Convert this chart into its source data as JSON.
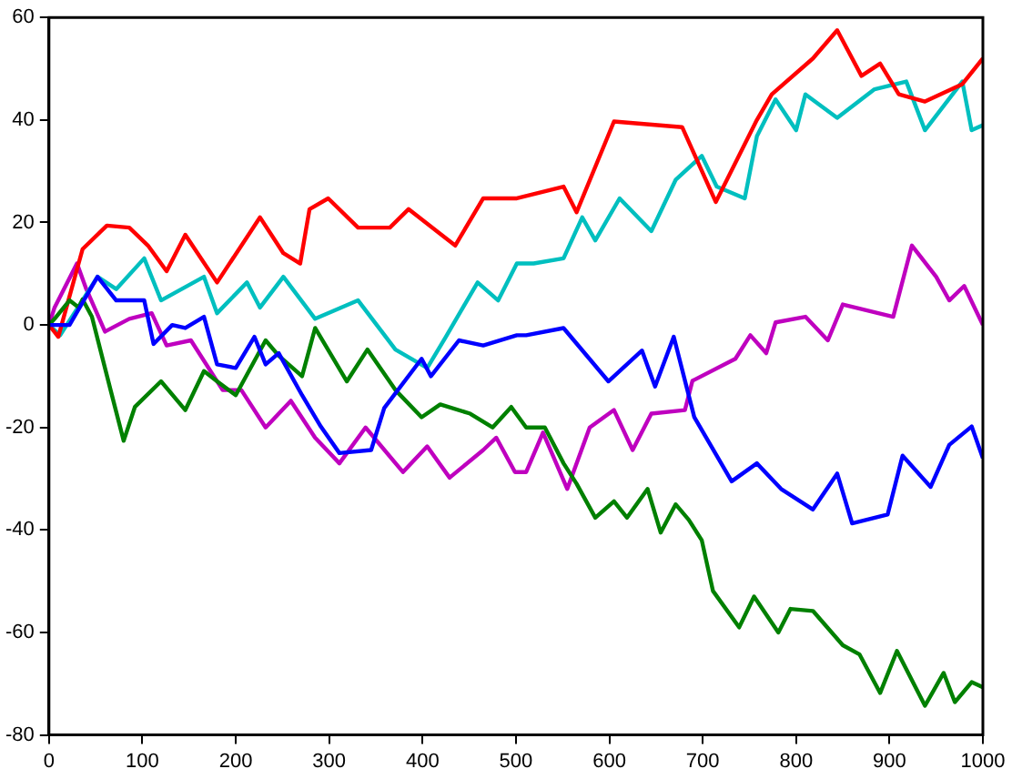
{
  "chart_data": {
    "type": "line",
    "xlim": [
      0,
      1000
    ],
    "xticks": [
      0,
      100,
      200,
      300,
      400,
      500,
      600,
      700,
      800,
      900,
      1000
    ],
    "ylim": [
      -80,
      60
    ],
    "yticks": [
      -80,
      -60,
      -40,
      -20,
      0,
      20,
      40,
      60
    ],
    "grid": false,
    "legend": false,
    "marker": "none",
    "line_style": "solid",
    "series": [
      {
        "color": "#0000ff",
        "x": [
          0,
          22,
          52,
          72,
          102,
          112,
          132,
          146,
          166,
          180,
          200,
          220,
          232,
          246,
          271,
          291,
          311,
          345,
          359,
          399,
          409,
          439,
          465,
          501,
          511,
          551,
          599,
          635,
          649,
          669,
          691,
          731,
          758,
          784,
          818,
          844,
          860,
          898,
          914,
          944,
          964,
          988,
          1000
        ],
        "values": [
          0,
          0,
          9.4,
          4.8,
          4.8,
          -3.7,
          0,
          -0.6,
          1.6,
          -7.7,
          -8.4,
          -2.3,
          -7.7,
          -5.5,
          -13.7,
          -19.8,
          -25,
          -24.4,
          -16.2,
          -6.6,
          -10,
          -3,
          -4,
          -2,
          -2,
          -0.6,
          -11,
          -5,
          -12,
          -2.3,
          -18,
          -30.5,
          -27,
          -32,
          -36,
          -29,
          -38.7,
          -37,
          -25.5,
          -31.6,
          -23.4,
          -19.8,
          -26
        ]
      },
      {
        "color": "#008000",
        "x": [
          0,
          6,
          22,
          32,
          36,
          46,
          66,
          80,
          92,
          120,
          146,
          166,
          180,
          200,
          232,
          246,
          271,
          285,
          319,
          341,
          371,
          399,
          419,
          451,
          475,
          495,
          511,
          531,
          551,
          565,
          585,
          605,
          619,
          641,
          655,
          671,
          685,
          699,
          711,
          739,
          755,
          781,
          794,
          818,
          850,
          868,
          890,
          908,
          938,
          958,
          970,
          988,
          1000
        ],
        "values": [
          0,
          1.2,
          4.8,
          3.4,
          5,
          1.6,
          -12.7,
          -22.6,
          -16,
          -11,
          -16.6,
          -9,
          -11,
          -13.7,
          -3,
          -6,
          -10,
          -0.6,
          -11,
          -4.8,
          -12.7,
          -18,
          -15.5,
          -17.3,
          -20,
          -16,
          -20,
          -20,
          -27,
          -31,
          -37.6,
          -34.4,
          -37.6,
          -32,
          -40.5,
          -35,
          -38,
          -42,
          -51.9,
          -59,
          -53,
          -60,
          -55.4,
          -55.8,
          -62.5,
          -64.3,
          -71.8,
          -63.6,
          -74.3,
          -67.9,
          -73.6,
          -69.7,
          -70.7
        ]
      },
      {
        "color": "#ff0000",
        "x": [
          0,
          10,
          36,
          62,
          86,
          106,
          126,
          146,
          180,
          226,
          251,
          269,
          279,
          299,
          331,
          365,
          385,
          435,
          465,
          501,
          551,
          565,
          605,
          678,
          714,
          758,
          774,
          818,
          844,
          870,
          890,
          910,
          938,
          978,
          1000
        ],
        "values": [
          0,
          -2.3,
          14.8,
          19.4,
          19,
          15.5,
          10.5,
          17.6,
          8.3,
          21,
          14,
          12,
          22.6,
          24.7,
          19,
          19,
          22.6,
          15.5,
          24.7,
          24.7,
          27,
          22,
          39.7,
          38.6,
          24,
          40,
          45,
          52,
          57.5,
          48.6,
          51,
          45,
          43.6,
          47,
          52
        ]
      },
      {
        "color": "#00bfbf",
        "x": [
          0,
          12,
          52,
          72,
          102,
          120,
          166,
          180,
          212,
          226,
          251,
          285,
          331,
          371,
          405,
          425,
          459,
          481,
          501,
          519,
          551,
          571,
          585,
          611,
          645,
          671,
          699,
          715,
          745,
          758,
          778,
          800,
          810,
          844,
          884,
          918,
          938,
          978,
          988,
          1000
        ],
        "values": [
          0,
          -2,
          9.4,
          7,
          13,
          4.8,
          9.4,
          2.3,
          8.3,
          3.4,
          9.4,
          1.2,
          4.8,
          -4.8,
          -8.4,
          -2.3,
          8.3,
          4.8,
          12,
          12,
          13,
          21,
          16.5,
          24.7,
          18.3,
          28.3,
          33,
          27,
          24.7,
          36.8,
          44,
          38,
          45,
          40.4,
          46,
          47.5,
          38,
          47.5,
          38,
          39
        ]
      },
      {
        "color": "#bf00bf",
        "x": [
          0,
          6,
          30,
          40,
          60,
          86,
          110,
          126,
          152,
          186,
          206,
          232,
          259,
          285,
          311,
          339,
          379,
          405,
          429,
          465,
          479,
          499,
          511,
          529,
          555,
          579,
          605,
          625,
          645,
          681,
          689,
          735,
          751,
          768,
          778,
          810,
          834,
          850,
          904,
          924,
          950,
          964,
          980,
          1000
        ],
        "values": [
          0,
          3.4,
          12,
          7,
          -1.3,
          1.2,
          2.3,
          -4,
          -3,
          -12.7,
          -12.7,
          -20,
          -14.8,
          -22,
          -27,
          -20,
          -28.7,
          -23.7,
          -29.8,
          -24.4,
          -22,
          -28.7,
          -28.7,
          -21,
          -32,
          -20,
          -16.6,
          -24.4,
          -17.3,
          -16.6,
          -10.9,
          -6.6,
          -2,
          -5.5,
          0.5,
          1.6,
          -3,
          4,
          1.6,
          15.5,
          9.4,
          4.8,
          7.6,
          0
        ]
      }
    ]
  }
}
